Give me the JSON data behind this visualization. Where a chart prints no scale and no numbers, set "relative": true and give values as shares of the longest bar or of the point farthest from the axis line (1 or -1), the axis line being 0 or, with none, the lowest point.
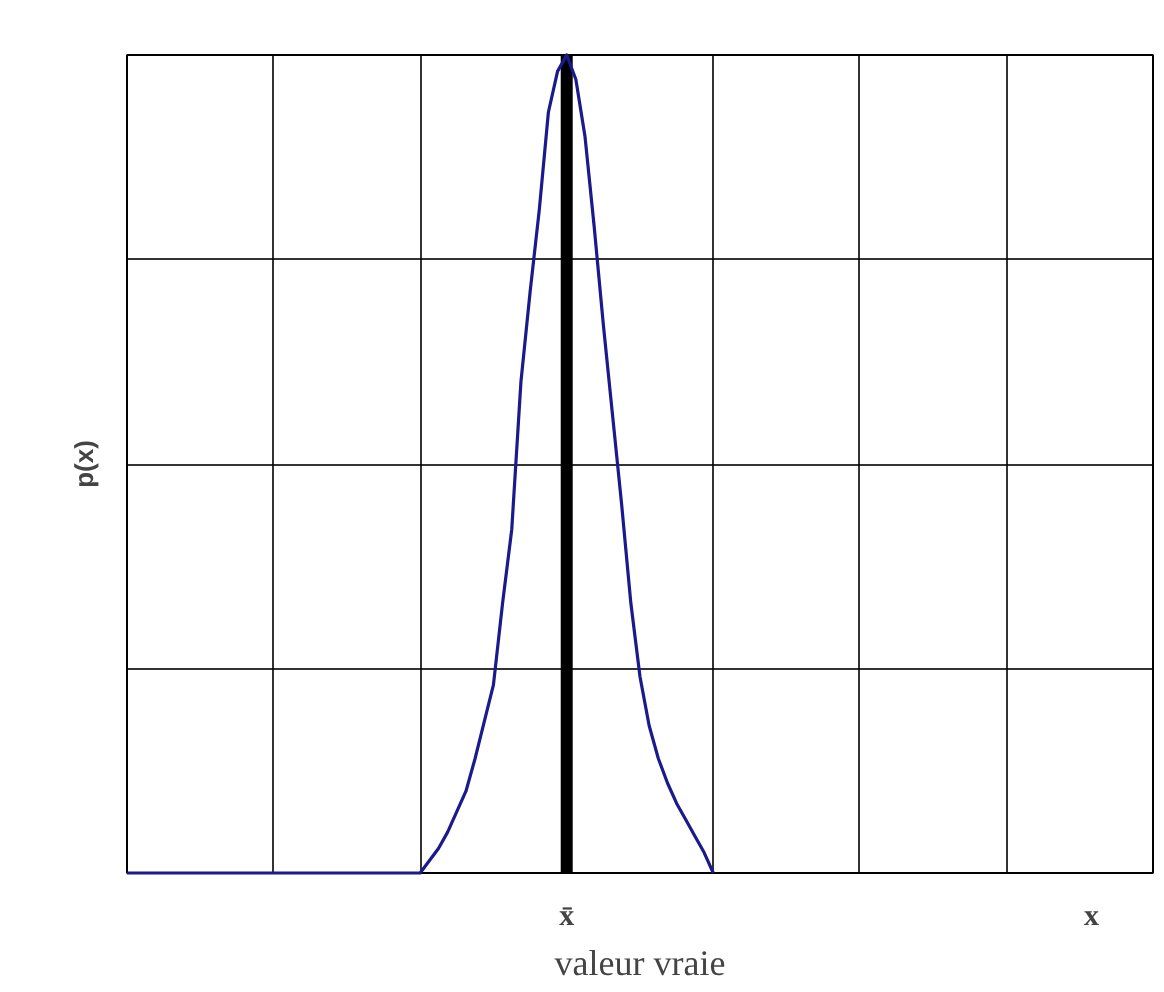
{
  "chart_data": {
    "type": "line",
    "relative": true,
    "xlabel": "x",
    "ylabel": "p(x)",
    "grid": true,
    "categories": [
      null,
      null,
      null,
      null,
      null,
      null,
      null,
      null,
      null,
      null,
      null,
      null,
      null,
      null,
      null,
      null,
      null,
      null,
      null,
      null,
      null,
      null,
      null,
      null,
      null,
      null,
      null,
      null,
      null,
      null,
      null,
      null,
      null,
      null,
      null,
      null,
      null,
      null,
      null,
      null,
      null,
      null,
      null,
      null,
      null,
      null,
      null,
      null,
      null,
      null,
      null,
      null,
      null,
      null,
      null,
      null,
      null,
      null,
      null,
      null,
      null,
      null,
      null,
      null,
      null,
      null,
      null,
      null,
      null,
      null,
      null,
      null,
      null,
      null,
      null,
      null,
      null,
      null,
      null,
      null,
      null,
      null,
      null,
      null,
      null,
      null,
      null,
      null,
      null,
      null,
      null,
      null,
      null,
      null,
      null,
      null,
      null,
      null,
      null,
      null,
      null,
      null,
      null,
      null,
      null,
      null,
      null,
      null,
      null,
      null,
      null,
      null,
      null
    ],
    "series": [
      {
        "color": "#1a1a8c",
        "values": [
          0,
          0,
          0,
          0,
          0,
          0,
          0,
          0,
          0,
          0,
          0,
          0,
          0,
          0,
          0,
          0,
          0,
          0,
          0,
          0,
          0,
          0,
          0,
          0,
          0,
          0,
          0,
          0,
          0,
          0,
          0,
          0,
          0,
          0.015,
          0.03,
          0.05,
          0.075,
          0.1,
          0.14,
          0.185,
          0.23,
          0.33,
          0.42,
          0.6,
          0.71,
          0.81,
          0.93,
          0.98,
          1.0,
          0.97,
          0.9,
          0.79,
          0.67,
          0.56,
          0.45,
          0.33,
          0.24,
          0.18,
          0.14,
          0.11,
          0.085,
          0.065,
          0.045,
          0.025,
          0,
          null,
          null,
          null,
          null,
          null,
          null,
          null,
          null,
          null,
          null,
          null,
          null,
          null,
          null,
          null,
          null,
          null,
          null,
          null,
          null,
          null,
          null,
          null,
          null,
          null,
          null,
          null,
          null,
          null,
          null,
          null,
          null,
          null,
          null,
          null,
          null,
          null,
          null,
          null,
          null,
          null,
          null,
          null,
          null,
          null,
          null,
          null,
          null
        ]
      }
    ],
    "annotations": [
      "x̄",
      "valeur vraie"
    ]
  }
}
